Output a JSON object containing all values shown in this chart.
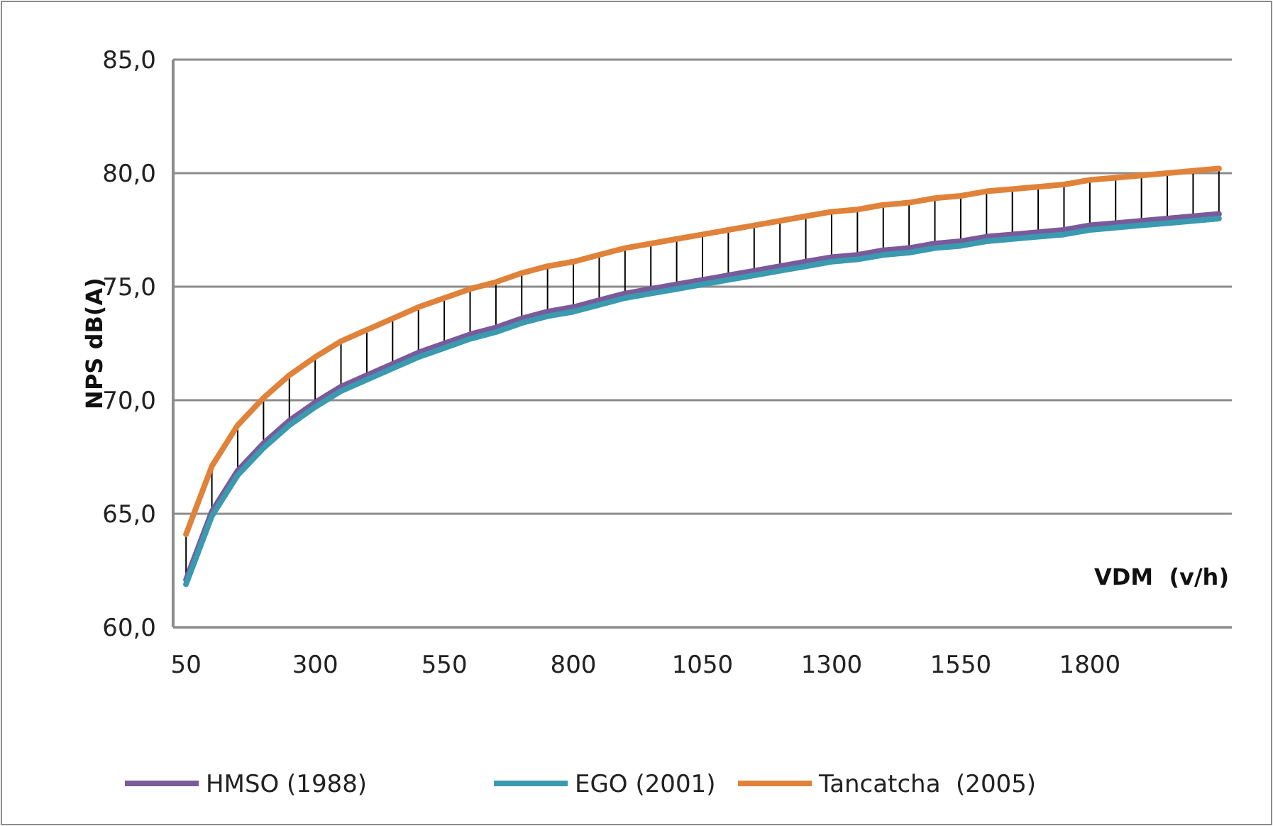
{
  "chart_data": {
    "type": "line",
    "xlabel": "VDM  (v/h)",
    "ylabel": "NPS dB(A)",
    "x": [
      50,
      100,
      150,
      200,
      250,
      300,
      350,
      400,
      450,
      500,
      550,
      600,
      650,
      700,
      750,
      800,
      850,
      900,
      950,
      1000,
      1050,
      1100,
      1150,
      1200,
      1250,
      1300,
      1350,
      1400,
      1450,
      1500,
      1550,
      1600,
      1650,
      1700,
      1750,
      1800,
      1850,
      1900,
      1950,
      2000,
      2050
    ],
    "xlim": [
      25,
      2075
    ],
    "xticks": [
      50,
      300,
      550,
      800,
      1050,
      1300,
      1550,
      1800
    ],
    "ylim": [
      60,
      85
    ],
    "yticks": [
      {
        "value": 60,
        "label": "60,0"
      },
      {
        "value": 65,
        "label": "65,0"
      },
      {
        "value": 70,
        "label": "70,0"
      },
      {
        "value": 75,
        "label": "75,0"
      },
      {
        "value": 80,
        "label": "80,0"
      },
      {
        "value": 85,
        "label": "85,0"
      }
    ],
    "grid": "y",
    "legend": "bottom",
    "line_style": "solid",
    "marker": "none",
    "series": [
      {
        "name": "HMSO (1988)",
        "color": "#7a5a9a",
        "values": [
          62.1,
          65.1,
          66.9,
          68.1,
          69.1,
          69.9,
          70.6,
          71.1,
          71.6,
          72.1,
          72.5,
          72.9,
          73.2,
          73.6,
          73.9,
          74.1,
          74.4,
          74.7,
          74.9,
          75.1,
          75.3,
          75.5,
          75.7,
          75.9,
          76.1,
          76.3,
          76.4,
          76.6,
          76.7,
          76.9,
          77.0,
          77.2,
          77.3,
          77.4,
          77.5,
          77.7,
          77.8,
          77.9,
          78.0,
          78.1,
          78.2
        ]
      },
      {
        "name": "EGO (2001)",
        "color": "#3a9ab0",
        "values": [
          61.9,
          64.9,
          66.7,
          67.9,
          68.9,
          69.7,
          70.4,
          70.9,
          71.4,
          71.9,
          72.3,
          72.7,
          73.0,
          73.4,
          73.7,
          73.9,
          74.2,
          74.5,
          74.7,
          74.9,
          75.1,
          75.3,
          75.5,
          75.7,
          75.9,
          76.1,
          76.2,
          76.4,
          76.5,
          76.7,
          76.8,
          77.0,
          77.1,
          77.2,
          77.3,
          77.5,
          77.6,
          77.7,
          77.8,
          77.9,
          78.0
        ]
      },
      {
        "name": "Tancatcha  (2005)",
        "color": "#e0823a",
        "values": [
          64.1,
          67.1,
          68.9,
          70.1,
          71.1,
          71.9,
          72.6,
          73.1,
          73.6,
          74.1,
          74.5,
          74.9,
          75.2,
          75.6,
          75.9,
          76.1,
          76.4,
          76.7,
          76.9,
          77.1,
          77.3,
          77.5,
          77.7,
          77.9,
          78.1,
          78.3,
          78.4,
          78.6,
          78.7,
          78.9,
          79.0,
          79.2,
          79.3,
          79.4,
          79.5,
          79.7,
          79.8,
          79.9,
          80.0,
          80.1,
          80.2
        ]
      }
    ]
  }
}
